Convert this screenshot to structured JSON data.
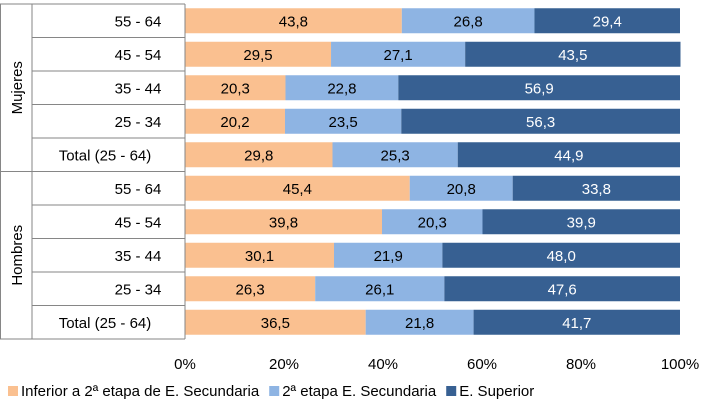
{
  "chart_data": {
    "type": "bar",
    "orientation": "horizontal",
    "stacked": "percent",
    "groups": [
      {
        "name": "Mujeres",
        "categories": [
          "55 - 64",
          "45 - 54",
          "35 - 44",
          "25 - 34",
          "Total (25 - 64)"
        ]
      },
      {
        "name": "Hombres",
        "categories": [
          "55 - 64",
          "45 - 54",
          "35 - 44",
          "25 - 34",
          "Total (25 - 64)"
        ]
      }
    ],
    "series": [
      {
        "name": "Inferior a 2ª etapa de E. Secundaria",
        "color": "#FAC090",
        "values": [
          43.8,
          29.5,
          20.3,
          20.2,
          29.8,
          45.4,
          39.8,
          30.1,
          26.3,
          36.5
        ],
        "labels": [
          "43,8",
          "29,5",
          "20,3",
          "20,2",
          "29,8",
          "45,4",
          "39,8",
          "30,1",
          "26,3",
          "36,5"
        ]
      },
      {
        "name": "2ª etapa E. Secundaria",
        "color": "#8EB4E3",
        "values": [
          26.8,
          27.1,
          22.8,
          23.5,
          25.3,
          20.8,
          20.3,
          21.9,
          26.1,
          21.8
        ],
        "labels": [
          "26,8",
          "27,1",
          "22,8",
          "23,5",
          "25,3",
          "20,8",
          "20,3",
          "21,9",
          "26,1",
          "21,8"
        ]
      },
      {
        "name": "E. Superior",
        "color": "#376092",
        "values": [
          29.4,
          43.5,
          56.9,
          56.3,
          44.9,
          33.8,
          39.9,
          48.0,
          47.6,
          41.7
        ],
        "labels": [
          "29,4",
          "43,5",
          "56,9",
          "56,3",
          "44,9",
          "33,8",
          "39,9",
          "48,0",
          "47,6",
          "41,7"
        ]
      }
    ],
    "xticks": [
      "0%",
      "20%",
      "40%",
      "60%",
      "80%",
      "100%"
    ],
    "xlim": [
      0,
      100
    ],
    "grid": false,
    "legend_position": "bottom"
  }
}
